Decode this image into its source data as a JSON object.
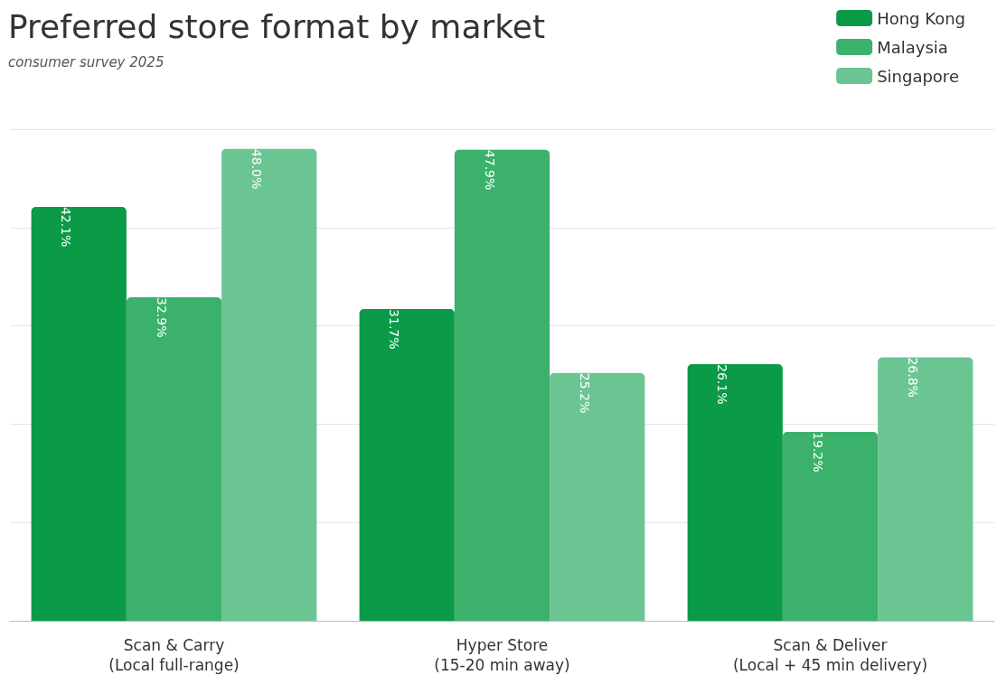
{
  "chart_data": {
    "type": "bar",
    "title": "Preferred store format by market",
    "subtitle": "consumer survey 2025",
    "categories": [
      "Scan & Carry\n(Local full-range)",
      "Hyper Store\n(15-20 min away)",
      "Scan & Deliver\n(Local + 45 min delivery)"
    ],
    "series": [
      {
        "name": "Hong Kong",
        "color": "#0a9a48",
        "values": [
          42.1,
          31.7,
          26.1
        ],
        "value_labels": [
          "42.1%",
          "31.7%",
          "26.1%"
        ]
      },
      {
        "name": "Malaysia",
        "color": "#3bb16b",
        "values": [
          32.9,
          47.9,
          19.2
        ],
        "value_labels": [
          "32.9%",
          "47.9%",
          "19.2%"
        ]
      },
      {
        "name": "Singapore",
        "color": "#6bc593",
        "values": [
          48.0,
          25.2,
          26.8
        ],
        "value_labels": [
          "48.0%",
          "25.2%",
          "26.8%"
        ]
      }
    ],
    "ylim": [
      0,
      50
    ],
    "yticks": [
      {
        "value": 0,
        "label": null
      },
      {
        "value": 10,
        "label": null
      },
      {
        "value": 20,
        "label": null
      },
      {
        "value": 30,
        "label": null
      },
      {
        "value": 40,
        "label": null
      },
      {
        "value": 50,
        "label": null
      }
    ],
    "tick_labels": "x",
    "grid": "y",
    "legend": "top right"
  }
}
